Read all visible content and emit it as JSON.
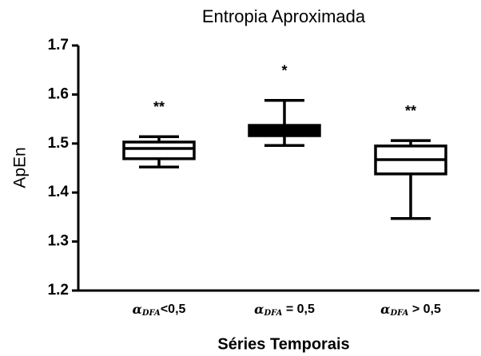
{
  "chart_data": {
    "type": "box",
    "title": "Entropia Aproximada",
    "y_label": "ApEn",
    "x_label": "Séries Temporais",
    "categories": [
      {
        "symbol": "α",
        "subscript": "DFA",
        "relation": "<0,5"
      },
      {
        "symbol": "α",
        "subscript": "DFA",
        "relation": " = 0,5"
      },
      {
        "symbol": "α",
        "subscript": "DFA",
        "relation": " > 0,5"
      }
    ],
    "boxes": [
      {
        "min": 1.452,
        "q1": 1.469,
        "median": 1.49,
        "q3": 1.503,
        "max": 1.514
      },
      {
        "min": 1.496,
        "q1": 1.516,
        "median": 1.525,
        "q3": 1.537,
        "max": 1.588
      },
      {
        "min": 1.347,
        "q1": 1.438,
        "median": 1.467,
        "q3": 1.495,
        "max": 1.506
      }
    ],
    "fills": [
      "#ffffff",
      "#000000",
      "#ffffff"
    ],
    "annotations": [
      "**",
      "*",
      "**"
    ],
    "ylim": [
      1.2,
      1.7
    ],
    "yticks": [
      {
        "value": 1.2,
        "label": "1.2"
      },
      {
        "value": 1.3,
        "label": "1.3"
      },
      {
        "value": 1.4,
        "label": "1.4"
      },
      {
        "value": 1.5,
        "label": "1.5"
      },
      {
        "value": 1.6,
        "label": "1.6"
      },
      {
        "value": 1.7,
        "label": "1.7"
      }
    ]
  }
}
